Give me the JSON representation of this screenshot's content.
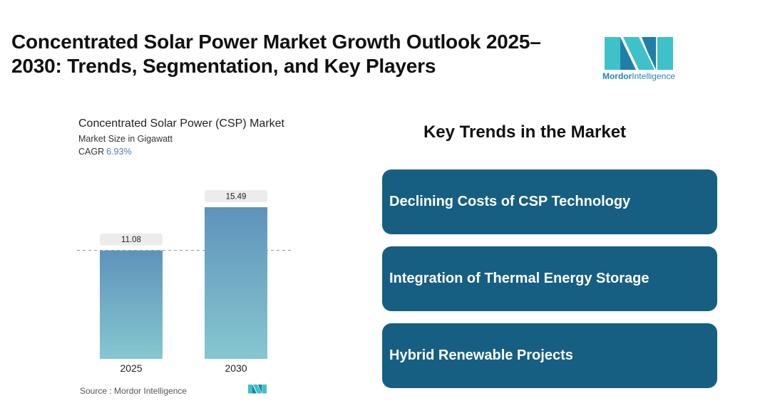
{
  "page": {
    "title": "Concentrated Solar Power Market Growth Outlook 2025–2030: Trends, Segmentation, and Key Players"
  },
  "logo": {
    "brand_bold": "Mordor",
    "brand_light": "Intelligence",
    "colors": [
      "#3fc1c9",
      "#1f7fa8"
    ]
  },
  "chart": {
    "title": "Concentrated Solar Power (CSP) Market",
    "subtitle": "Market Size in Gigawatt",
    "cagr_label": "CAGR",
    "cagr_value": "6.93%",
    "source": "Source :  Mordor Intelligence"
  },
  "chart_data": {
    "type": "bar",
    "categories": [
      "2025",
      "2030"
    ],
    "values": [
      11.08,
      15.49
    ],
    "data_labels": [
      "11.08",
      "15.49"
    ],
    "title": "Concentrated Solar Power (CSP) Market",
    "ylabel": "",
    "xlabel": "",
    "ylim": [
      0,
      15.49
    ],
    "reference_line_at": 11.08,
    "grid": false,
    "bar_color_top": "#5e93bb",
    "bar_color_bottom": "#86c7d0"
  },
  "trends": {
    "title": "Key Trends in the Market",
    "items": [
      "Declining Costs of CSP Technology",
      "Integration of Thermal Energy Storage",
      "Hybrid Renewable Projects"
    ],
    "card_color": "#165f82"
  }
}
